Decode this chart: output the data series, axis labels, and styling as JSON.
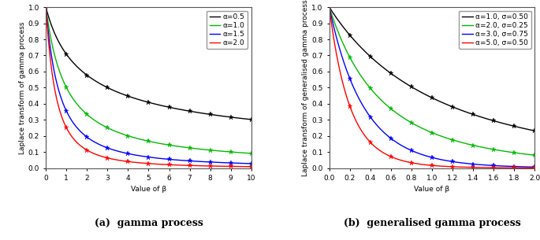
{
  "panel_a": {
    "title": "(a)  gamma process",
    "xlabel": "Value of β",
    "ylabel": "Laplace transform of gamma process",
    "xlim": [
      0,
      10
    ],
    "ylim": [
      0,
      1
    ],
    "xticks": [
      0,
      1,
      2,
      3,
      4,
      5,
      6,
      7,
      8,
      9,
      10
    ],
    "yticks": [
      0.0,
      0.1,
      0.2,
      0.3,
      0.4,
      0.5,
      0.6,
      0.7,
      0.8,
      0.9,
      1.0
    ],
    "series": [
      {
        "alpha": 0.5,
        "color": "#000000",
        "label": "α=0.5"
      },
      {
        "alpha": 1.0,
        "color": "#00bb00",
        "label": "α=1.0"
      },
      {
        "alpha": 1.5,
        "color": "#0000ff",
        "label": "α=1.5"
      },
      {
        "alpha": 2.0,
        "color": "#ff0000",
        "label": "α=2.0"
      }
    ],
    "marker_positions": [
      0,
      1,
      2,
      3,
      4,
      5,
      6,
      7,
      8,
      9,
      10
    ]
  },
  "panel_b": {
    "title": "(b)  generalised gamma process",
    "xlabel": "Value of β",
    "ylabel": "Laplace transform of generalised gamma process",
    "xlim": [
      0,
      2
    ],
    "ylim": [
      0,
      1
    ],
    "xticks": [
      0,
      0.2,
      0.4,
      0.6,
      0.8,
      1.0,
      1.2,
      1.4,
      1.6,
      1.8,
      2.0
    ],
    "yticks": [
      0.0,
      0.1,
      0.2,
      0.3,
      0.4,
      0.5,
      0.6,
      0.7,
      0.8,
      0.9,
      1.0
    ],
    "series": [
      {
        "alpha": 1.0,
        "sigma": 0.5,
        "color": "#000000",
        "label": "α=1.0, σ=0.50"
      },
      {
        "alpha": 2.0,
        "sigma": 0.25,
        "color": "#00bb00",
        "label": "α=2.0, σ=0.25"
      },
      {
        "alpha": 3.0,
        "sigma": 0.75,
        "color": "#0000ff",
        "label": "α=3.0, σ=0.75"
      },
      {
        "alpha": 5.0,
        "sigma": 0.5,
        "color": "#ff0000",
        "label": "α=5.0, σ=0.50"
      }
    ],
    "marker_positions": [
      0,
      0.2,
      0.4,
      0.6,
      0.8,
      1.0,
      1.2,
      1.4,
      1.6,
      1.8,
      2.0
    ]
  },
  "background_color": "#ffffff",
  "legend_fontsize": 6.5,
  "axis_label_fontsize": 6.5,
  "tick_fontsize": 6.5,
  "caption_fontsize": 9,
  "line_width": 1.0,
  "marker_size": 4.5
}
